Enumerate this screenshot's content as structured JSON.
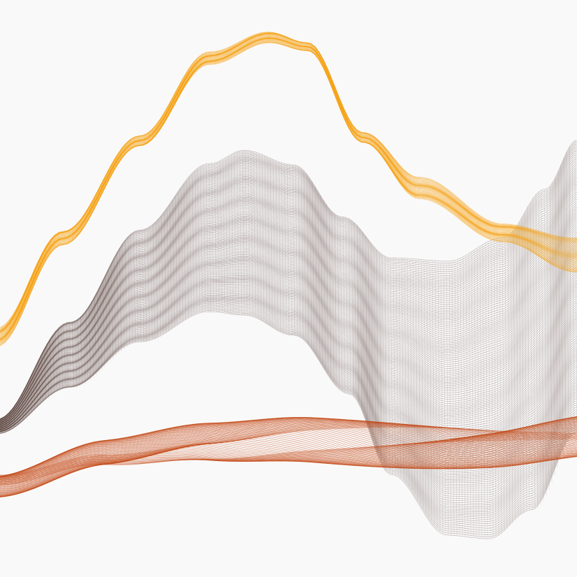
{
  "artwork": {
    "background": "#f9f9f9",
    "ribbons": [
      {
        "name": "orange",
        "color": "#f59e0b",
        "line_count": 40,
        "opacity": 0.55
      },
      {
        "name": "brown",
        "color": "#5b4640",
        "line_count": 150,
        "opacity": 0.35
      },
      {
        "name": "red",
        "color": "#c2410c",
        "line_count": 70,
        "opacity": 0.45
      }
    ]
  }
}
